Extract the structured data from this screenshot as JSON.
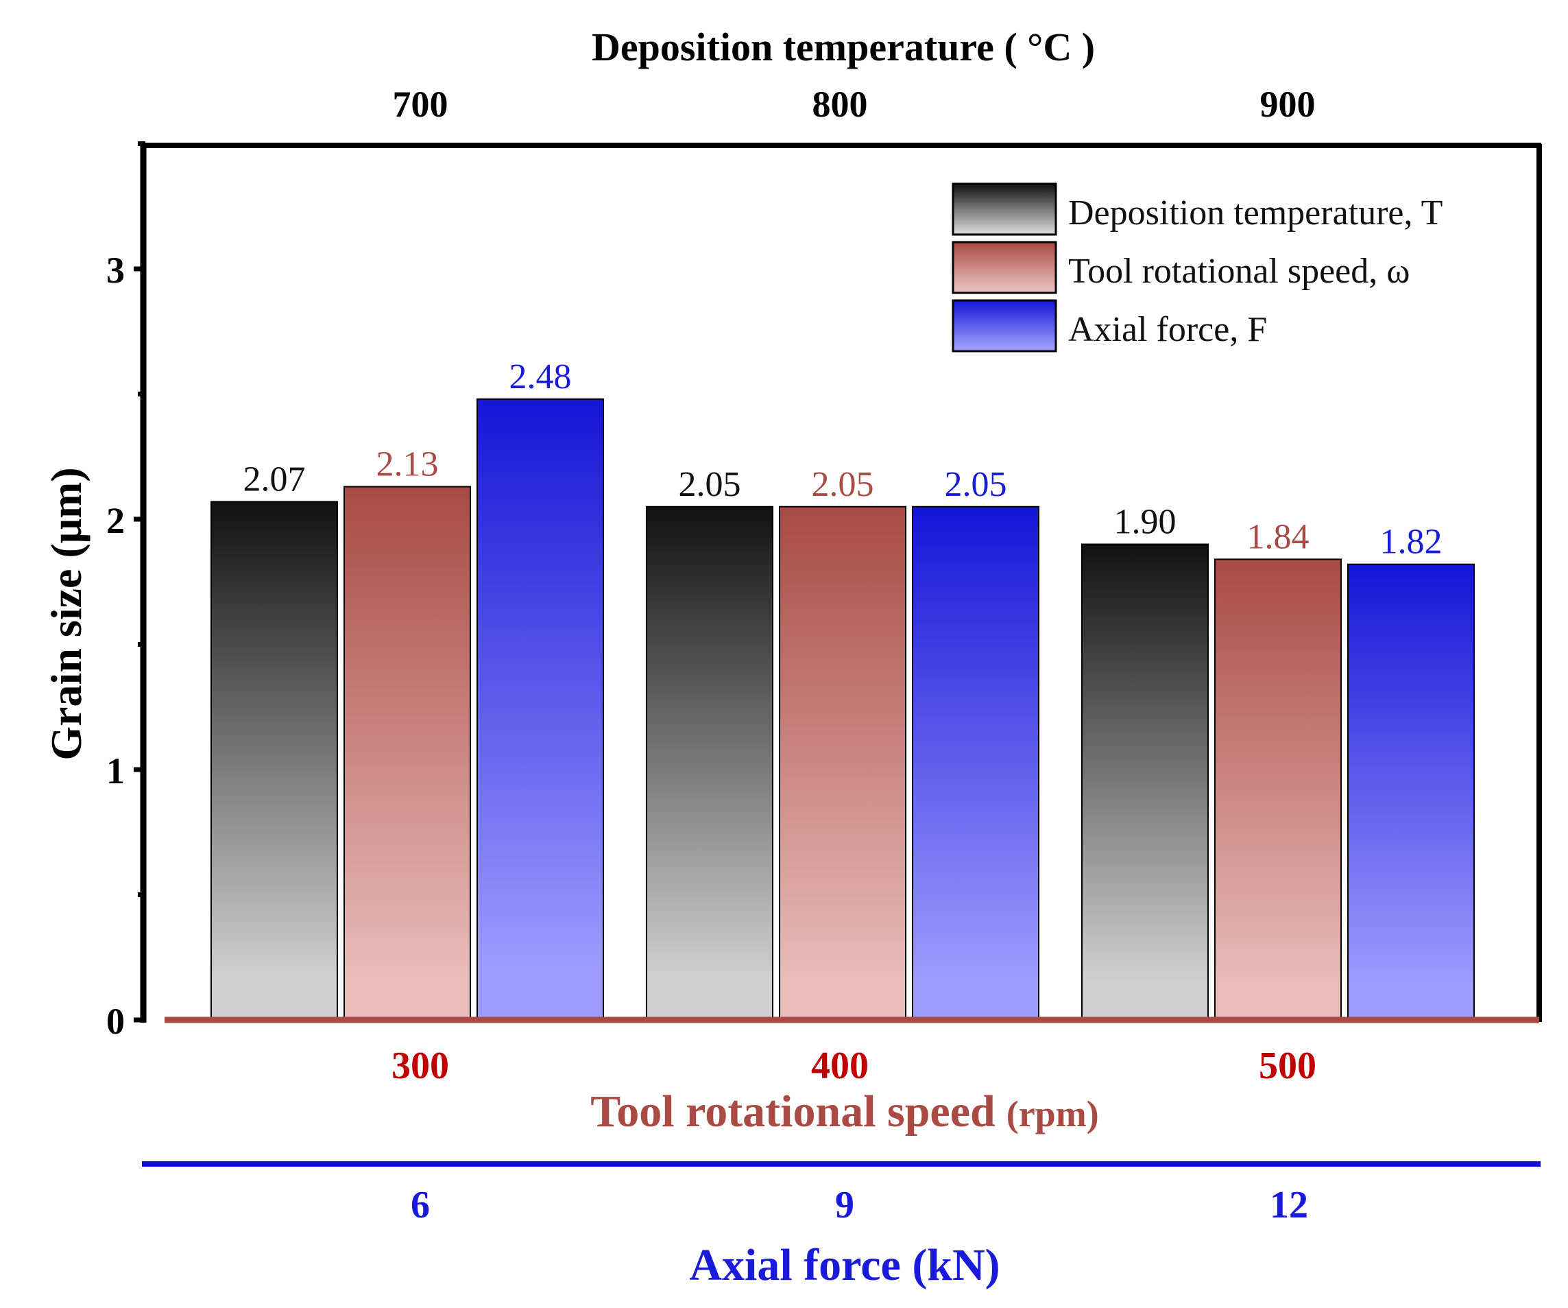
{
  "chart_data": {
    "type": "bar",
    "title": "",
    "top_axis": {
      "label": "Deposition temperature ( °C )",
      "ticks": [
        "700",
        "800",
        "900"
      ],
      "color": "#000000"
    },
    "bottom_axis_1": {
      "label_main": "Tool rotational speed",
      "label_unit": "(rpm)",
      "ticks": [
        "300",
        "400",
        "500"
      ],
      "tick_color": "#c00000",
      "label_color": "#a94a44",
      "line_color": "#a94a44"
    },
    "bottom_axis_2": {
      "label": "Axial force (kN)",
      "ticks": [
        "6",
        "9",
        "12"
      ],
      "color": "#1a1adb",
      "line_color": "#1010dd"
    },
    "ylabel": "Grain size (μm)",
    "ylim": [
      0,
      3.5
    ],
    "y_ticks": [
      "0",
      "1",
      "2",
      "3"
    ],
    "groups": 3,
    "series": [
      {
        "name": "Deposition temperature, T",
        "values": [
          2.07,
          2.05,
          1.9
        ],
        "labels": [
          "2.07",
          "2.05",
          "1.90"
        ],
        "label_color": "#111111",
        "grad_top": "#111111",
        "grad_bottom": "#d0d0d0"
      },
      {
        "name": "Tool rotational speed, ω",
        "values": [
          2.13,
          2.05,
          1.84
        ],
        "labels": [
          "2.13",
          "2.05",
          "1.84"
        ],
        "label_color": "#a94a44",
        "grad_top": "#a94a44",
        "grad_bottom": "#e8bcb8"
      },
      {
        "name": "Axial force, F",
        "values": [
          2.48,
          2.05,
          1.82
        ],
        "labels": [
          "2.48",
          "2.05",
          "1.82"
        ],
        "label_color": "#1a1adb",
        "grad_top": "#1515d6",
        "grad_bottom": "#9c9cff"
      }
    ],
    "legend_position": "top-right"
  }
}
